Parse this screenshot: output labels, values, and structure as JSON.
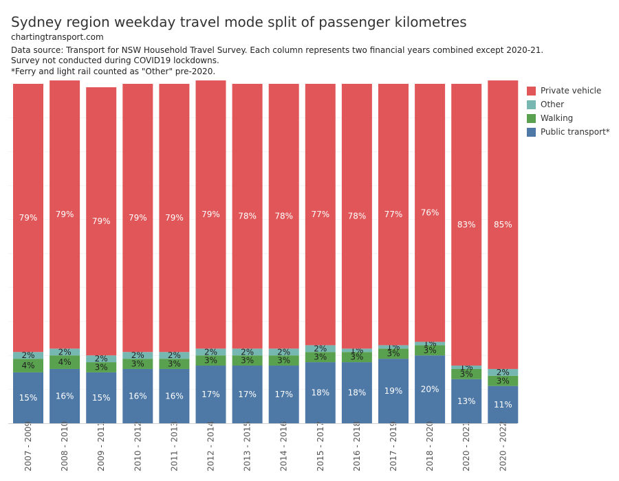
{
  "header": {
    "title": "Sydney region weekday travel mode split of passenger kilometres",
    "source": "chartingtransport.com",
    "note1": "Data source: Transport for NSW Household Travel Survey. Each column represents two financial years combined except 2020-21.",
    "note2": "Survey not conducted during COVID19 lockdowns.",
    "note3": "*Ferry and light rail counted as \"Other\" pre-2020."
  },
  "colors": {
    "Private vehicle": "#e15759",
    "Other": "#76b7b2",
    "Walking": "#59a14f",
    "Public transport*": "#4e79a7"
  },
  "chart_data": {
    "type": "bar",
    "stacked": true,
    "normalized": true,
    "title": "Sydney region weekday travel mode split of passenger kilometres",
    "categories": [
      "2007 - 2009",
      "2008 - 2010",
      "2009 - 2011",
      "2010 - 2012",
      "2011 - 2013",
      "2012 - 2014",
      "2013 - 2015",
      "2014 - 2016",
      "2015 - 2017",
      "2016 - 2018",
      "2017 - 2019",
      "2018 - 2020",
      "2020 - 2021",
      "2020 - 2022"
    ],
    "series": [
      {
        "name": "Public transport*",
        "values": [
          15,
          16,
          15,
          16,
          16,
          17,
          17,
          17,
          18,
          18,
          19,
          20,
          13,
          11
        ]
      },
      {
        "name": "Walking",
        "values": [
          4,
          4,
          3,
          3,
          3,
          3,
          3,
          3,
          3,
          3,
          3,
          3,
          3,
          3
        ]
      },
      {
        "name": "Other",
        "values": [
          2,
          2,
          2,
          2,
          2,
          2,
          2,
          2,
          2,
          1,
          1,
          1,
          1,
          2
        ]
      },
      {
        "name": "Private vehicle",
        "values": [
          79,
          79,
          79,
          79,
          79,
          79,
          78,
          78,
          77,
          78,
          77,
          76,
          83,
          85
        ]
      }
    ],
    "ylim": [
      0,
      100
    ],
    "legend": [
      "Private vehicle",
      "Other",
      "Walking",
      "Public transport*"
    ],
    "legend_position": "right"
  }
}
